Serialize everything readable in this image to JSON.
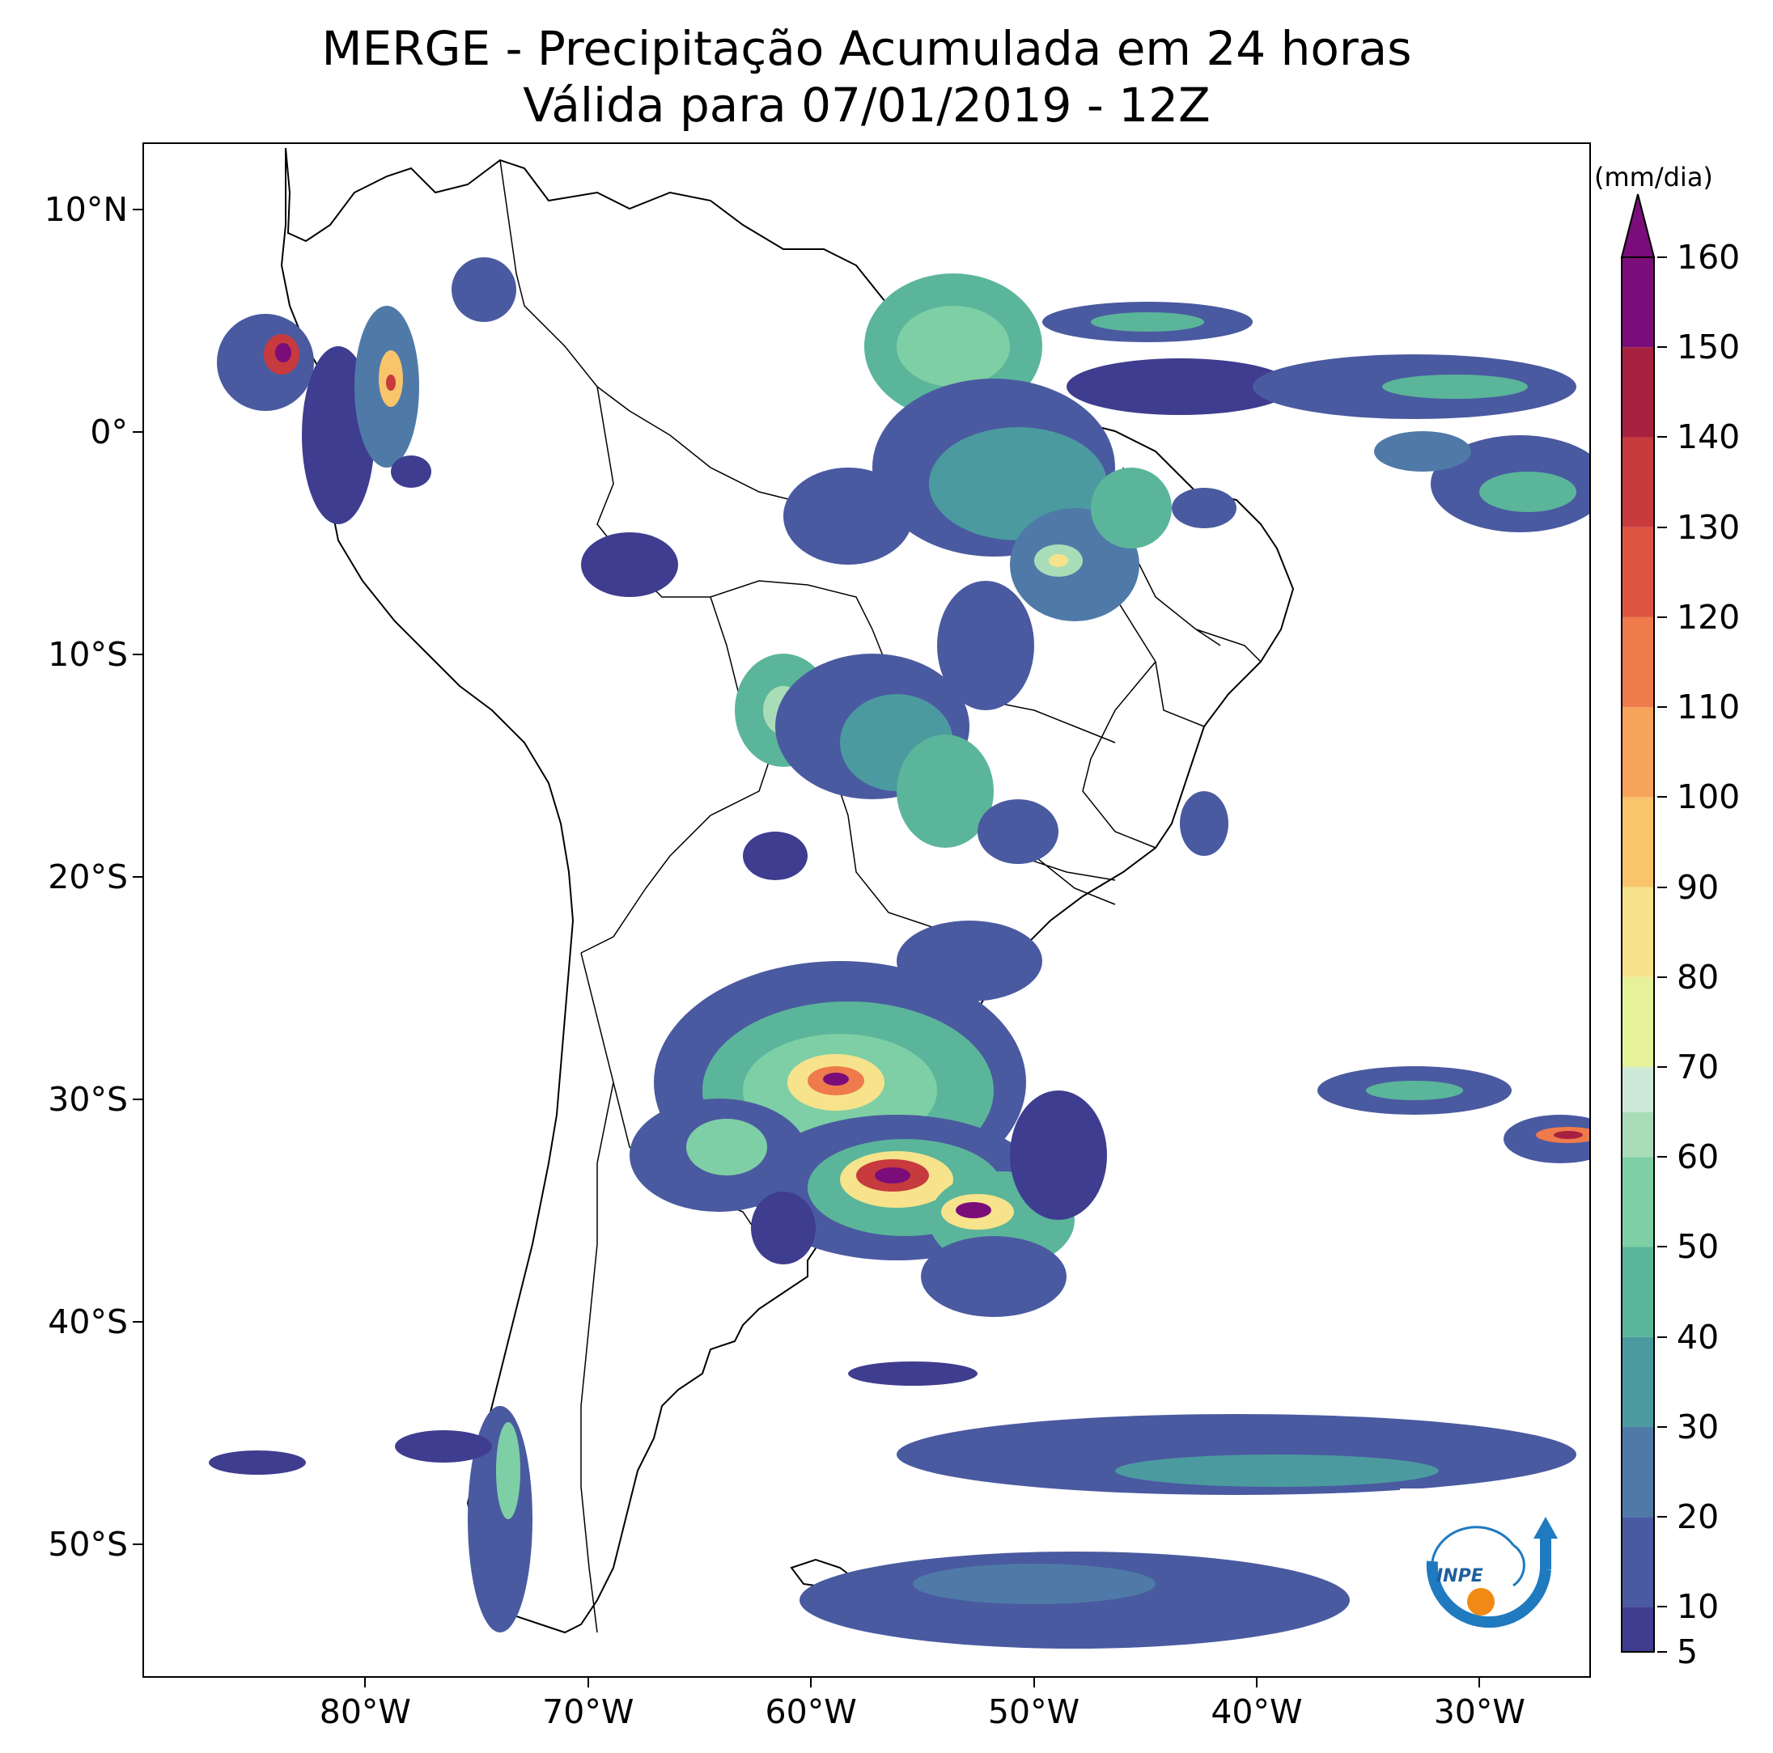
{
  "title": {
    "line1": "MERGE - Precipitação Acumulada em 24 horas",
    "line2": "Válida para 07/01/2019 - 12Z"
  },
  "map": {
    "lat_range": [
      -56,
      13
    ],
    "lon_range": [
      -90,
      -25
    ],
    "lat_ticks": [
      "10°N",
      "0°",
      "10°S",
      "20°S",
      "30°S",
      "40°S",
      "50°S"
    ],
    "lat_tick_values": [
      10,
      0,
      -10,
      -20,
      -30,
      -40,
      -50
    ],
    "lon_ticks": [
      "80°W",
      "70°W",
      "60°W",
      "50°W",
      "40°W",
      "30°W"
    ],
    "lon_tick_values": [
      -80,
      -70,
      -60,
      -50,
      -40,
      -30
    ]
  },
  "colorbar": {
    "unit": "(mm/dia)",
    "labels": [
      "160",
      "150",
      "140",
      "130",
      "120",
      "110",
      "100",
      "90",
      "80",
      "70",
      "60",
      "50",
      "40",
      "30",
      "20",
      "10",
      "5"
    ],
    "values": [
      160,
      150,
      140,
      130,
      120,
      110,
      100,
      90,
      80,
      70,
      60,
      50,
      40,
      30,
      20,
      10,
      5
    ],
    "colors_low_to_high": [
      "#3f3d8f",
      "#4a5aa0",
      "#4f7aa8",
      "#4b9aa0",
      "#5bb59a",
      "#7fcfa6",
      "#a9ddb8",
      "#cfe9d9",
      "#e6f29a",
      "#f6e38b",
      "#f9c46a",
      "#f7a35a",
      "#ef7a4b",
      "#dd5540",
      "#c73a3e",
      "#a82040",
      "#7a0d7a"
    ]
  },
  "logo": {
    "text": "INPE"
  }
}
